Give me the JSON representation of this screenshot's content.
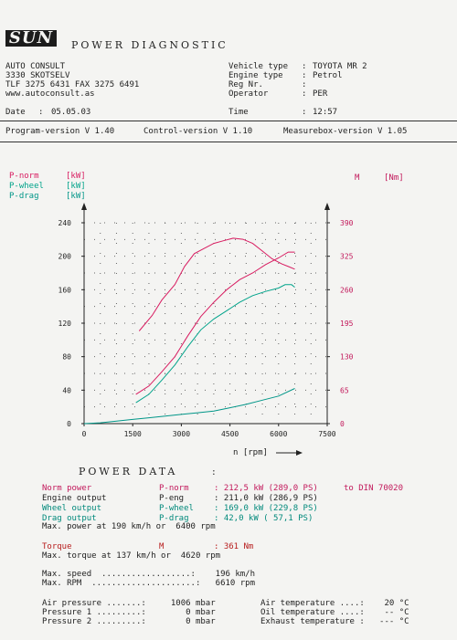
{
  "header": {
    "logo": "SUN",
    "title": "POWER DIAGNOSTIC",
    "company": [
      "AUTO CONSULT",
      "3330 SKOTSELV",
      "TLF 3275 6431 FAX 3275 6491",
      "www.autoconsult.as"
    ],
    "vehicle_type_label": "Vehicle type",
    "vehicle_type": "TOYOTA MR 2",
    "engine_type_label": "Engine type",
    "engine_type": "Petrol",
    "reg_label": "Reg Nr.",
    "reg": "",
    "operator_label": "Operator",
    "operator": "PER",
    "date_label": "Date",
    "date": "05.05.03",
    "time_label": "Time",
    "time": "12:57",
    "program_version": "Program-version V 1.40",
    "control_version": "Control-version V 1.10",
    "measurebox_version": "Measurebox-version V 1.05"
  },
  "legend": {
    "pnorm": "P-norm",
    "pwheel": "P-wheel",
    "pdrag": "P-drag",
    "unit": "[kW]",
    "torque": "M",
    "torque_unit": "[Nm]"
  },
  "colors": {
    "pnorm": "#d81b60",
    "pwheel": "#00a38a",
    "pdrag": "#009688",
    "torque": "#d81b60",
    "torque_axis": "#c2185b"
  },
  "chart_data": {
    "type": "line",
    "xlabel": "n [rpm]",
    "xlim": [
      0,
      7500
    ],
    "ylim_left": [
      0,
      240
    ],
    "ylim_right": [
      0,
      390
    ],
    "x_ticks": [
      "0",
      "1500",
      "3000",
      "4500",
      "6000",
      "7500"
    ],
    "y_left_ticks": [
      "0",
      "40",
      "80",
      "120",
      "160",
      "200",
      "240"
    ],
    "y_right_ticks": [
      "0",
      "65",
      "130",
      "195",
      "260",
      "325",
      "390"
    ],
    "grid": true,
    "series": [
      {
        "name": "P-norm",
        "axis": "left",
        "x": [
          1600,
          2000,
          2400,
          2800,
          3200,
          3600,
          4000,
          4400,
          4800,
          5200,
          5600,
          6000,
          6300,
          6500
        ],
        "y": [
          35,
          45,
          62,
          80,
          105,
          128,
          145,
          160,
          172,
          180,
          190,
          198,
          205,
          205
        ]
      },
      {
        "name": "P-wheel",
        "axis": "left",
        "x": [
          1600,
          2000,
          2400,
          2800,
          3200,
          3600,
          4000,
          4400,
          4800,
          5200,
          5600,
          6000,
          6200,
          6400,
          6500
        ],
        "y": [
          25,
          35,
          52,
          70,
          92,
          112,
          125,
          135,
          145,
          153,
          158,
          162,
          166,
          166,
          163
        ]
      },
      {
        "name": "P-drag",
        "axis": "left",
        "x": [
          0,
          500,
          1000,
          1500,
          2000,
          2500,
          3000,
          3500,
          4000,
          4500,
          5000,
          5500,
          6000,
          6500
        ],
        "y": [
          0,
          1,
          3,
          5,
          7,
          9,
          11,
          13,
          15,
          19,
          23,
          28,
          33,
          42
        ]
      },
      {
        "name": "M",
        "axis": "right",
        "x": [
          1700,
          2100,
          2400,
          2800,
          3100,
          3400,
          3700,
          4000,
          4300,
          4600,
          4900,
          5200,
          5500,
          5800,
          6100,
          6300,
          6500
        ],
        "y": [
          180,
          210,
          240,
          270,
          305,
          330,
          340,
          350,
          355,
          360,
          358,
          350,
          335,
          320,
          310,
          305,
          300
        ]
      }
    ]
  },
  "power_data": {
    "title": "POWER DATA",
    "rows": [
      {
        "label": "Norm power",
        "param": "P-norm",
        "value": ": 212,5 kW (289,0 PS)",
        "extra": "to DIN 70020",
        "color": "red"
      },
      {
        "label": "Engine output",
        "param": "P-eng",
        "value": ": 211,0 kW (286,9 PS)",
        "extra": "",
        "color": "black"
      },
      {
        "label": "Wheel output",
        "param": "P-wheel",
        "value": ": 169,0 kW (229,8 PS)",
        "extra": "",
        "color": "cyan"
      },
      {
        "label": "Drag output",
        "param": "P-drag",
        "value": ": 42,0 kW ( 57,1 PS)",
        "extra": "",
        "color": "cyan"
      }
    ],
    "max_power_line": "Max. power at 190 km/h or  6400 rpm",
    "torque_label": "Torque",
    "torque_param": "M",
    "torque_value": ": 361 Nm",
    "max_torque_line": "Max. torque at 137 km/h or  4620 rpm",
    "max_speed_line": "Max. speed  ..................:    196 km/h",
    "max_rpm_line": "Max. RPM  .....................:   6610 rpm",
    "env_left": [
      "Air pressure .......:     1006 mbar",
      "Pressure 1 .........:        0 mbar",
      "Pressure 2 .........:        0 mbar"
    ],
    "env_right": [
      "Air temperature ....:    20 °C",
      "Oil temperature ....:    -- °C",
      "Exhaust temperature :   --- °C"
    ]
  }
}
